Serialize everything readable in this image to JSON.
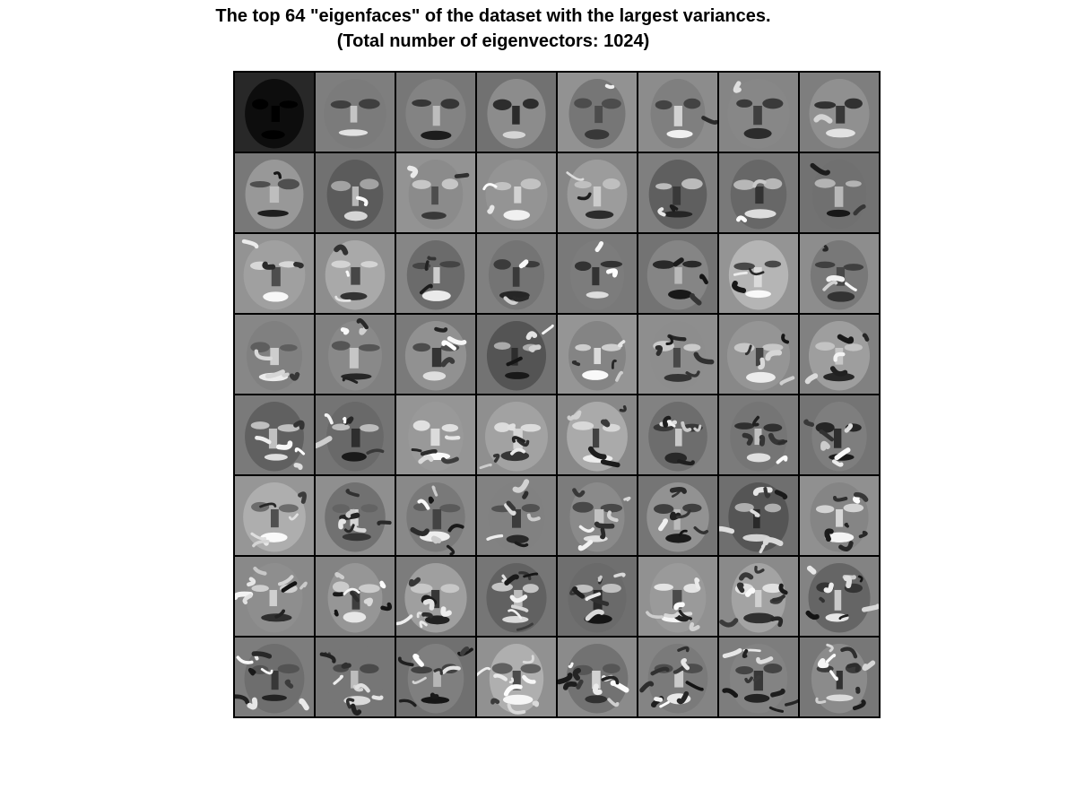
{
  "figure": {
    "title_line1": "The top 64 \"eigenfaces\" of the dataset with the largest variances.",
    "title_line2": "(Total number of eigenvectors: 1024)"
  },
  "grid": {
    "rows": 8,
    "cols": 8,
    "tile_count": 64,
    "colormap": "grayscale",
    "border_color": "#000000",
    "background_color": "#ffffff"
  }
}
